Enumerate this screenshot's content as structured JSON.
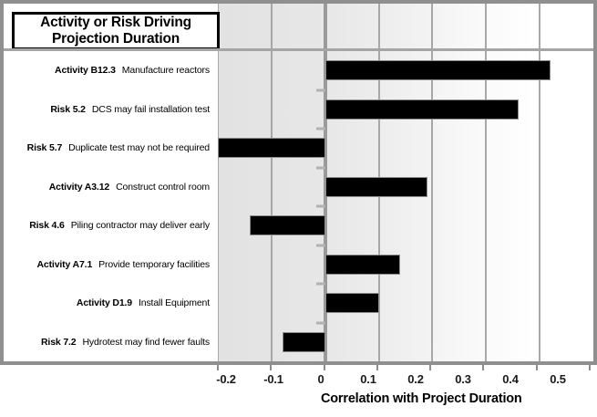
{
  "header": {
    "title_line1": "Activity or Risk Driving",
    "title_line2": "Projection Duration"
  },
  "axis": {
    "xlabel": "Correlation with Project Duration",
    "tick_labels": [
      "-0.2",
      "-0.1",
      "0",
      "0.1",
      "0.2",
      "0.3",
      "0.4",
      "0.5"
    ]
  },
  "colors": {
    "bar": "#000000",
    "frame": "#8f8f8f",
    "gridline": "#a7a7a7",
    "plot_bg_left": "#e2e2e2",
    "plot_bg_right": "#ffffff"
  },
  "chart_data": {
    "type": "bar",
    "orientation": "horizontal",
    "title": "Activity or Risk Driving Projection Duration",
    "xlabel": "Correlation with Project Duration",
    "xlim": [
      -0.2,
      0.5
    ],
    "xticks": [
      -0.2,
      -0.1,
      0,
      0.1,
      0.2,
      0.3,
      0.4,
      0.5
    ],
    "grid": true,
    "legend": false,
    "bar_color": "#000000",
    "items": [
      {
        "prefix": "Activity B12.3",
        "desc": "Manufacture reactors",
        "value": 0.42
      },
      {
        "prefix": "Risk 5.2",
        "desc": "DCS may fail installation test",
        "value": 0.36
      },
      {
        "prefix": "Risk 5.7",
        "desc": "Duplicate test may not be required",
        "value": -0.2
      },
      {
        "prefix": "Activity A3.12",
        "desc": "Construct control room",
        "value": 0.19
      },
      {
        "prefix": "Risk 4.6",
        "desc": "Piling contractor may deliver early",
        "value": -0.14
      },
      {
        "prefix": "Activity A7.1",
        "desc": "Provide temporary facilities",
        "value": 0.14
      },
      {
        "prefix": "Activity D1.9",
        "desc": "Install Equipment",
        "value": 0.1
      },
      {
        "prefix": "Risk 7.2",
        "desc": "Hydrotest may find fewer faults",
        "value": -0.08
      }
    ]
  }
}
